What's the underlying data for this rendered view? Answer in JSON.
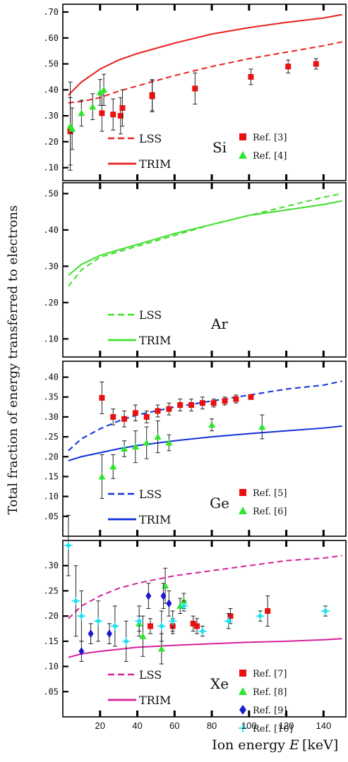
{
  "figure": {
    "ylabel": "Total fraction of energy transferred to electrons",
    "xlabel_pre": "Ion energy ",
    "xlabel_var": "E",
    "xlabel_unit": "[keV]",
    "xticks": [
      "20",
      "40",
      "60",
      "80",
      "100",
      "120",
      "140"
    ]
  },
  "colors": {
    "Si": "#e8201c",
    "Ar": "#3ee02a",
    "Ge": "#1030d8",
    "Xe": "#d5209a",
    "ref_red": "#e81010",
    "ref_green": "#2ee62e",
    "ref_blue": "#1a1ad0",
    "ref_cyan": "#20e0f0",
    "axis": "#000000",
    "errorbar": "#222222"
  },
  "chart_data": [
    {
      "type": "line",
      "element_label": "Si",
      "xlim": [
        0,
        152
      ],
      "ylim": [
        0.05,
        0.73
      ],
      "yticks": [
        ".10",
        ".20",
        ".30",
        ".40",
        ".50",
        ".60",
        ".70"
      ],
      "legend": {
        "lss": "LSS",
        "trim": "TRIM"
      },
      "series": [
        {
          "name": "LSS",
          "style": "dashed",
          "x": [
            3,
            10,
            20,
            30,
            40,
            60,
            80,
            100,
            120,
            140,
            150
          ],
          "y": [
            0.35,
            0.355,
            0.37,
            0.395,
            0.415,
            0.455,
            0.49,
            0.52,
            0.545,
            0.57,
            0.585
          ]
        },
        {
          "name": "TRIM",
          "style": "solid",
          "x": [
            3,
            10,
            20,
            30,
            40,
            60,
            80,
            100,
            120,
            140,
            150
          ],
          "y": [
            0.38,
            0.43,
            0.48,
            0.515,
            0.54,
            0.58,
            0.615,
            0.64,
            0.66,
            0.677,
            0.69
          ]
        }
      ],
      "points": [
        {
          "name": "Ref. [3]",
          "marker": "square",
          "data": [
            [
              4,
              0.24,
              0.13
            ],
            [
              21,
              0.31,
              0.07
            ],
            [
              27,
              0.305,
              0.06
            ],
            [
              31,
              0.3,
              0.07
            ],
            [
              32,
              0.33,
              0.07
            ],
            [
              48,
              0.38,
              0.06
            ],
            [
              48,
              0.375,
              0.06
            ],
            [
              71,
              0.405,
              0.06
            ],
            [
              101,
              0.45,
              0.03
            ],
            [
              121,
              0.49,
              0.025
            ],
            [
              136,
              0.5,
              0.02
            ]
          ]
        },
        {
          "name": "Ref. [4]",
          "marker": "triangle",
          "data": [
            [
              4,
              0.26,
              0.17
            ],
            [
              5,
              0.25,
              0.08
            ],
            [
              10,
              0.31,
              0.05
            ],
            [
              16,
              0.335,
              0.05
            ],
            [
              20,
              0.39,
              0.05
            ],
            [
              22,
              0.4,
              0.06
            ]
          ]
        }
      ]
    },
    {
      "type": "line",
      "element_label": "Ar",
      "xlim": [
        0,
        152
      ],
      "ylim": [
        0.05,
        0.53
      ],
      "yticks": [
        ".10",
        ".20",
        ".30",
        ".40",
        ".50"
      ],
      "legend": {
        "lss": "LSS",
        "trim": "TRIM"
      },
      "series": [
        {
          "name": "LSS",
          "style": "dashed",
          "x": [
            3,
            10,
            20,
            40,
            60,
            80,
            100,
            120,
            140,
            150
          ],
          "y": [
            0.245,
            0.29,
            0.325,
            0.355,
            0.385,
            0.415,
            0.44,
            0.465,
            0.49,
            0.5
          ]
        },
        {
          "name": "TRIM",
          "style": "solid",
          "x": [
            3,
            10,
            20,
            40,
            60,
            80,
            100,
            120,
            140,
            150
          ],
          "y": [
            0.275,
            0.305,
            0.33,
            0.36,
            0.39,
            0.415,
            0.44,
            0.455,
            0.47,
            0.48
          ]
        }
      ]
    },
    {
      "type": "line",
      "element_label": "Ge",
      "xlim": [
        0,
        152
      ],
      "ylim": [
        0.0,
        0.44
      ],
      "yticks": [
        ".05",
        ".10",
        ".15",
        ".20",
        ".25",
        ".30",
        ".35",
        ".40"
      ],
      "legend": {
        "lss": "LSS",
        "trim": "TRIM"
      },
      "series": [
        {
          "name": "LSS",
          "style": "dashed",
          "x": [
            3,
            10,
            20,
            30,
            40,
            60,
            80,
            100,
            120,
            140,
            150
          ],
          "y": [
            0.215,
            0.245,
            0.27,
            0.29,
            0.305,
            0.325,
            0.34,
            0.355,
            0.37,
            0.38,
            0.39
          ]
        },
        {
          "name": "TRIM",
          "style": "solid",
          "x": [
            3,
            10,
            20,
            30,
            40,
            60,
            80,
            100,
            120,
            140,
            150
          ],
          "y": [
            0.19,
            0.2,
            0.21,
            0.22,
            0.228,
            0.24,
            0.25,
            0.258,
            0.265,
            0.272,
            0.277
          ]
        }
      ],
      "points": [
        {
          "name": "Ref. [5]",
          "marker": "square",
          "data": [
            [
              21,
              0.348,
              0.04
            ],
            [
              27,
              0.3,
              0.02
            ],
            [
              33,
              0.295,
              0.02
            ],
            [
              39,
              0.31,
              0.02
            ],
            [
              45,
              0.3,
              0.015
            ],
            [
              51,
              0.315,
              0.015
            ],
            [
              57,
              0.32,
              0.015
            ],
            [
              63,
              0.33,
              0.015
            ],
            [
              69,
              0.33,
              0.015
            ],
            [
              75,
              0.335,
              0.015
            ],
            [
              81,
              0.335,
              0.01
            ],
            [
              87,
              0.34,
              0.01
            ],
            [
              93,
              0.345,
              0.01
            ],
            [
              101,
              0.35,
              0.005
            ]
          ]
        },
        {
          "name": "Ref. [6]",
          "marker": "triangle",
          "data": [
            [
              21,
              0.15,
              0.055
            ],
            [
              27,
              0.175,
              0.03
            ],
            [
              33,
              0.22,
              0.02
            ],
            [
              39,
              0.225,
              0.04
            ],
            [
              45,
              0.235,
              0.04
            ],
            [
              51,
              0.25,
              0.04
            ],
            [
              57,
              0.235,
              0.02
            ],
            [
              80,
              0.28,
              0.015
            ],
            [
              107,
              0.275,
              0.03
            ]
          ]
        }
      ]
    },
    {
      "type": "line",
      "element_label": "Xe",
      "xlim": [
        0,
        152
      ],
      "ylim": [
        0.0,
        0.35
      ],
      "yticks": [
        ".05",
        ".10",
        ".15",
        ".20",
        ".25",
        ".30"
      ],
      "legend": {
        "lss": "LSS",
        "trim": "TRIM"
      },
      "series": [
        {
          "name": "LSS",
          "style": "dashed",
          "x": [
            3,
            10,
            20,
            30,
            40,
            60,
            80,
            100,
            120,
            140,
            150
          ],
          "y": [
            0.195,
            0.22,
            0.24,
            0.255,
            0.265,
            0.28,
            0.29,
            0.3,
            0.31,
            0.315,
            0.32
          ]
        },
        {
          "name": "TRIM",
          "style": "solid",
          "x": [
            3,
            10,
            20,
            30,
            40,
            60,
            80,
            100,
            120,
            140,
            150
          ],
          "y": [
            0.118,
            0.125,
            0.13,
            0.134,
            0.138,
            0.142,
            0.145,
            0.148,
            0.15,
            0.153,
            0.155
          ]
        }
      ],
      "points": [
        {
          "name": "Ref. [7]",
          "marker": "square",
          "data": [
            [
              47,
              0.18,
              0.015
            ],
            [
              59,
              0.18,
              0.015
            ],
            [
              70,
              0.185,
              0.015
            ],
            [
              72,
              0.18,
              0.015
            ],
            [
              90,
              0.2,
              0.015
            ],
            [
              110,
              0.21,
              0.03
            ]
          ]
        },
        {
          "name": "Ref. [8]",
          "marker": "triangle",
          "data": [
            [
              41,
              0.185,
              0.015
            ],
            [
              43,
              0.16,
              0.04
            ],
            [
              53,
              0.135,
              0.03
            ],
            [
              55,
              0.26,
              0.035
            ],
            [
              63,
              0.22,
              0.015
            ],
            [
              65,
              0.23,
              0.015
            ]
          ]
        },
        {
          "name": "Ref. [9]",
          "marker": "diamond",
          "data": [
            [
              10,
              0.13,
              0.02
            ],
            [
              15,
              0.165,
              0.02
            ],
            [
              25,
              0.165,
              0.02
            ],
            [
              46,
              0.24,
              0.025
            ],
            [
              54,
              0.24,
              0.025
            ],
            [
              57,
              0.225,
              0.025
            ]
          ]
        },
        {
          "name": "Ref. [10]",
          "marker": "cross",
          "data": [
            [
              3,
              0.34,
              0.06
            ],
            [
              7,
              0.23,
              0.07
            ],
            [
              10,
              0.2,
              0.05
            ],
            [
              19,
              0.19,
              0.04
            ],
            [
              28,
              0.18,
              0.04
            ],
            [
              34,
              0.15,
              0.04
            ],
            [
              41,
              0.19,
              0.03
            ],
            [
              53,
              0.18,
              0.03
            ],
            [
              59,
              0.19,
              0.02
            ],
            [
              65,
              0.22,
              0.01
            ],
            [
              75,
              0.17,
              0.01
            ],
            [
              89,
              0.19,
              0.015
            ],
            [
              106,
              0.2,
              0.01
            ],
            [
              141,
              0.21,
              0.01
            ]
          ]
        }
      ]
    }
  ]
}
